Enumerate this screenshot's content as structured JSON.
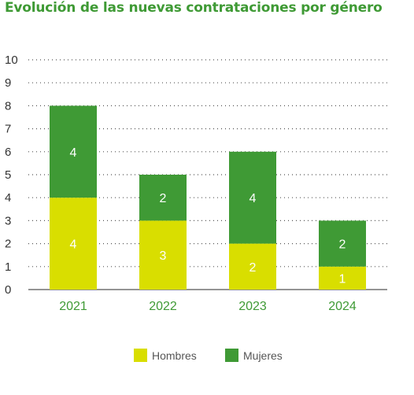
{
  "title": "Evolución de las nuevas contrataciones por género",
  "legend": {
    "hombres": "Hombres",
    "mujeres": "Mujeres"
  },
  "colors": {
    "hombres": "#d9de00",
    "mujeres": "#3f9a35",
    "grid": "#555555"
  },
  "chart_data": {
    "type": "bar",
    "stacked": true,
    "title": "Evolución de las nuevas contrataciones por género",
    "categories": [
      "2021",
      "2022",
      "2023",
      "2024"
    ],
    "series": [
      {
        "name": "Hombres",
        "values": [
          4,
          3,
          2,
          1
        ]
      },
      {
        "name": "Mujeres",
        "values": [
          4,
          2,
          4,
          2
        ]
      }
    ],
    "ylim": [
      0,
      10
    ],
    "yticks": [
      0,
      1,
      2,
      3,
      4,
      5,
      6,
      7,
      8,
      9,
      10
    ],
    "grid": true,
    "legend_position": "bottom"
  }
}
